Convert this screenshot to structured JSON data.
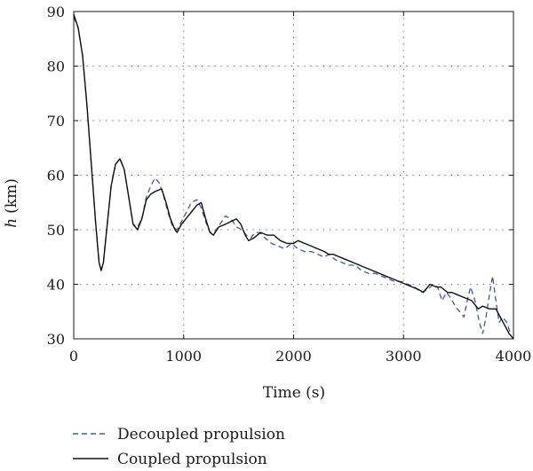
{
  "chart_data": {
    "type": "line",
    "xlabel": "Time (s)",
    "ylabel_symbol": "h",
    "ylabel_unit": "(km)",
    "xlim": [
      0,
      4000
    ],
    "ylim": [
      30,
      90
    ],
    "xticks": [
      0,
      1000,
      2000,
      3000,
      4000
    ],
    "yticks": [
      30,
      40,
      50,
      60,
      70,
      80,
      90
    ],
    "grid": true,
    "legend_position": "bottom-left, below plot",
    "series": [
      {
        "name": "Decoupled propulsion",
        "style": "dashed",
        "color": "#3a5aa8",
        "points": [
          [
            0,
            89
          ],
          [
            40,
            87
          ],
          [
            80,
            82
          ],
          [
            120,
            73
          ],
          [
            160,
            62
          ],
          [
            200,
            51
          ],
          [
            230,
            44
          ],
          [
            250,
            42.5
          ],
          [
            270,
            44
          ],
          [
            300,
            50
          ],
          [
            340,
            58
          ],
          [
            380,
            62
          ],
          [
            420,
            63
          ],
          [
            460,
            61
          ],
          [
            500,
            56
          ],
          [
            540,
            51
          ],
          [
            580,
            50.5
          ],
          [
            620,
            52
          ],
          [
            660,
            56
          ],
          [
            700,
            58
          ],
          [
            740,
            59.5
          ],
          [
            780,
            58.5
          ],
          [
            820,
            56
          ],
          [
            860,
            53
          ],
          [
            900,
            50.5
          ],
          [
            940,
            50
          ],
          [
            980,
            51.5
          ],
          [
            1020,
            53
          ],
          [
            1070,
            55
          ],
          [
            1120,
            55.5
          ],
          [
            1160,
            54
          ],
          [
            1200,
            51.5
          ],
          [
            1240,
            49.5
          ],
          [
            1280,
            49.5
          ],
          [
            1330,
            51
          ],
          [
            1380,
            52.5
          ],
          [
            1430,
            52
          ],
          [
            1480,
            50.5
          ],
          [
            1530,
            50
          ],
          [
            1570,
            49
          ],
          [
            1610,
            48.5
          ],
          [
            1650,
            49.5
          ],
          [
            1690,
            49.5
          ],
          [
            1740,
            48.5
          ],
          [
            1800,
            47.5
          ],
          [
            1860,
            47
          ],
          [
            1920,
            46.5
          ],
          [
            1980,
            47.5
          ],
          [
            2040,
            46.5
          ],
          [
            2100,
            46
          ],
          [
            2160,
            46
          ],
          [
            2220,
            45.5
          ],
          [
            2280,
            45
          ],
          [
            2320,
            45.5
          ],
          [
            2380,
            44.5
          ],
          [
            2440,
            44
          ],
          [
            2500,
            43.5
          ],
          [
            2560,
            43.5
          ],
          [
            2620,
            42.5
          ],
          [
            2680,
            42
          ],
          [
            2740,
            42
          ],
          [
            2800,
            41.5
          ],
          [
            2860,
            41
          ],
          [
            2920,
            40.5
          ],
          [
            2980,
            40.5
          ],
          [
            3040,
            40
          ],
          [
            3100,
            39.5
          ],
          [
            3160,
            38.5
          ],
          [
            3220,
            39
          ],
          [
            3270,
            40
          ],
          [
            3310,
            39.5
          ],
          [
            3350,
            37
          ],
          [
            3390,
            38.5
          ],
          [
            3430,
            37.5
          ],
          [
            3470,
            36
          ],
          [
            3510,
            35
          ],
          [
            3550,
            34
          ],
          [
            3580,
            37
          ],
          [
            3610,
            39.5
          ],
          [
            3650,
            37
          ],
          [
            3690,
            33
          ],
          [
            3720,
            31
          ],
          [
            3750,
            34
          ],
          [
            3780,
            38
          ],
          [
            3810,
            41.5
          ],
          [
            3840,
            37
          ],
          [
            3870,
            33
          ],
          [
            3900,
            34
          ],
          [
            3940,
            33
          ],
          [
            3980,
            30.5
          ]
        ]
      },
      {
        "name": "Coupled propulsion",
        "style": "solid",
        "color": "#111111",
        "points": [
          [
            0,
            89.5
          ],
          [
            40,
            87
          ],
          [
            80,
            82
          ],
          [
            120,
            73
          ],
          [
            160,
            62
          ],
          [
            200,
            51
          ],
          [
            230,
            44
          ],
          [
            250,
            42.5
          ],
          [
            270,
            44
          ],
          [
            300,
            50
          ],
          [
            340,
            58
          ],
          [
            380,
            62
          ],
          [
            420,
            63
          ],
          [
            460,
            61
          ],
          [
            500,
            56
          ],
          [
            540,
            51
          ],
          [
            580,
            50
          ],
          [
            620,
            52
          ],
          [
            660,
            55.5
          ],
          [
            700,
            56.5
          ],
          [
            740,
            57
          ],
          [
            800,
            57.5
          ],
          [
            840,
            55
          ],
          [
            880,
            52
          ],
          [
            920,
            50
          ],
          [
            940,
            49.5
          ],
          [
            980,
            51
          ],
          [
            1020,
            52
          ],
          [
            1080,
            53.5
          ],
          [
            1120,
            54.5
          ],
          [
            1160,
            55
          ],
          [
            1200,
            52
          ],
          [
            1240,
            49.5
          ],
          [
            1270,
            49
          ],
          [
            1320,
            50.5
          ],
          [
            1380,
            51
          ],
          [
            1430,
            51.5
          ],
          [
            1480,
            52
          ],
          [
            1520,
            51
          ],
          [
            1560,
            49
          ],
          [
            1590,
            48
          ],
          [
            1640,
            48.5
          ],
          [
            1700,
            49.5
          ],
          [
            1760,
            49
          ],
          [
            1820,
            49
          ],
          [
            1880,
            48
          ],
          [
            1940,
            47.5
          ],
          [
            2000,
            47.5
          ],
          [
            2040,
            48
          ],
          [
            2100,
            47.5
          ],
          [
            2160,
            47
          ],
          [
            2220,
            46.5
          ],
          [
            2280,
            46
          ],
          [
            2320,
            45.5
          ],
          [
            2360,
            45.5
          ],
          [
            2420,
            45
          ],
          [
            2480,
            44.5
          ],
          [
            2540,
            44
          ],
          [
            2600,
            43.5
          ],
          [
            2660,
            43
          ],
          [
            2720,
            42.5
          ],
          [
            2780,
            42
          ],
          [
            2840,
            41.5
          ],
          [
            2900,
            41
          ],
          [
            2960,
            40.5
          ],
          [
            3020,
            40
          ],
          [
            3080,
            39.5
          ],
          [
            3140,
            39
          ],
          [
            3180,
            38.5
          ],
          [
            3240,
            40
          ],
          [
            3300,
            39.5
          ],
          [
            3340,
            39.5
          ],
          [
            3400,
            38.5
          ],
          [
            3440,
            38.5
          ],
          [
            3500,
            38
          ],
          [
            3560,
            37.5
          ],
          [
            3620,
            37
          ],
          [
            3680,
            35.5
          ],
          [
            3720,
            36
          ],
          [
            3780,
            35.5
          ],
          [
            3840,
            35.5
          ],
          [
            3880,
            34
          ],
          [
            3920,
            32.5
          ],
          [
            3960,
            31
          ],
          [
            4000,
            30
          ]
        ]
      }
    ]
  }
}
